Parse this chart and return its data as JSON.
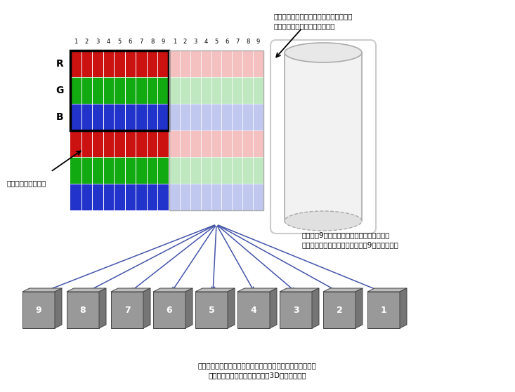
{
  "bg_color": "#ffffff",
  "lenticular_sheet_label1": "垂直レンチキュラーシート（イメージ）",
  "lenticular_sheet_label2": "［液晶パネルに貼付けて使用］",
  "pixel_label": "映像表示での１画素",
  "note_text1": "１画素で9方向の映像を表示し、画素の光を",
  "note_text2": "垂直レンチキュラーシートにより9方向へ放射。",
  "bottom_text1": "見る角度に連動して映像の中に見える物体の角度も変わり、",
  "bottom_text2": "より自然で見やすいグラスレス3D視聴を実現。",
  "rgb_colors": [
    "#cc1111",
    "#11aa11",
    "#2233cc"
  ],
  "rgb_light_colors": [
    "#f5c0c0",
    "#c0e8c0",
    "#c0c8f0"
  ],
  "arrow_color": "#4455aa",
  "cube_numbers": [
    "9",
    "8",
    "7",
    "6",
    "5",
    "4",
    "3",
    "2",
    "1"
  ],
  "cube_color_face": "#999999",
  "cube_color_top": "#bbbbbb",
  "cube_color_side": "#757575"
}
